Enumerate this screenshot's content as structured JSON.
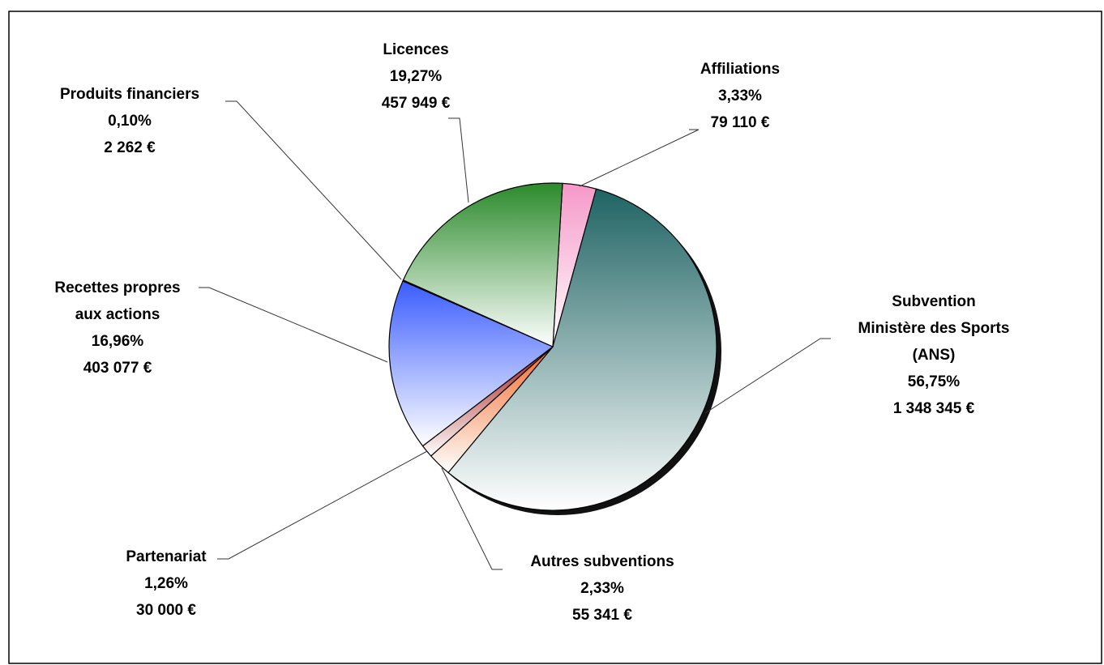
{
  "chart_data": {
    "type": "pie",
    "categories": [
      "Affiliations",
      "Subvention\nMinistère des Sports\n(ANS)",
      "Autres subventions",
      "Partenariat",
      "Recettes propres\naux actions",
      "Produits financiers",
      "Licences"
    ],
    "values": [
      3.33,
      56.75,
      2.33,
      1.26,
      16.96,
      0.1,
      19.27
    ],
    "value_labels": [
      "3,33%",
      "56,75%",
      "2,33%",
      "1,26%",
      "16,96%",
      "0,10%",
      "19,27%"
    ],
    "amounts": [
      79110,
      1348345,
      55341,
      30000,
      403077,
      2262,
      457949
    ],
    "amount_labels": [
      "79 110 €",
      "1 348 345 €",
      "55 341 €",
      "30 000 €",
      "403 077 €",
      "2 262 €",
      "457 949 €"
    ],
    "colors": [
      "#f598c8",
      "#1f6363",
      "#f26a2a",
      "#a01212",
      "#3a5cff",
      "#222222",
      "#2b8a2b"
    ]
  }
}
